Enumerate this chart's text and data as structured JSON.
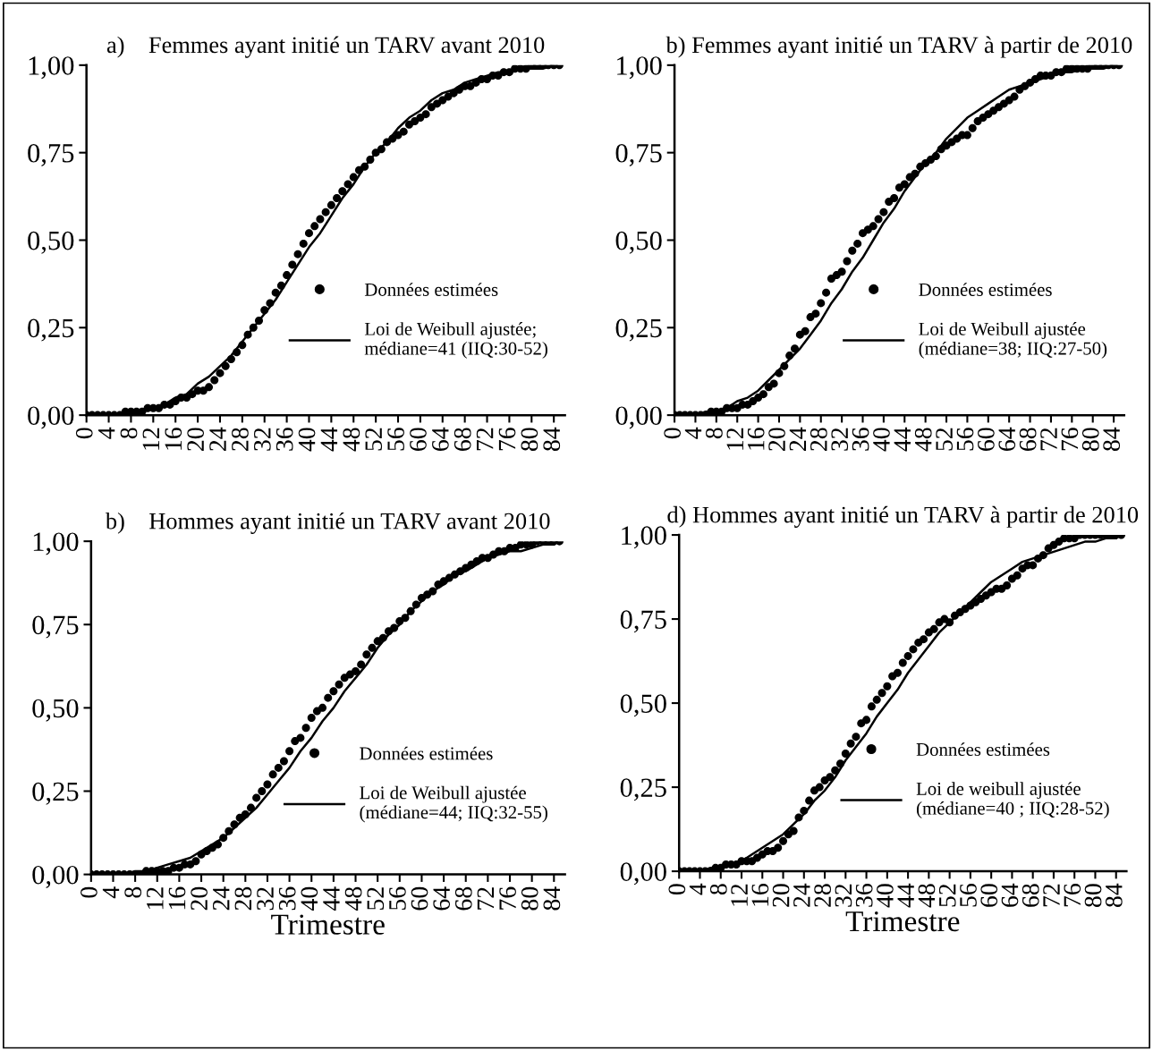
{
  "chart_data": [
    {
      "type": "scatter",
      "title": "a)    Femmes ayant initié un TARV avant 2010",
      "legend": "right",
      "grid": false,
      "x": [
        0,
        1,
        2,
        3,
        4,
        5,
        6,
        7,
        8,
        9,
        10,
        11,
        12,
        13,
        14,
        15,
        16,
        17,
        18,
        19,
        20,
        21,
        22,
        23,
        24,
        25,
        26,
        27,
        28,
        29,
        30,
        31,
        32,
        33,
        34,
        35,
        36,
        37,
        38,
        39,
        40,
        41,
        42,
        43,
        44,
        45,
        46,
        47,
        48,
        49,
        50,
        51,
        52,
        53,
        54,
        55,
        56,
        57,
        58,
        59,
        60,
        61,
        62,
        63,
        64,
        65,
        66,
        67,
        68,
        69,
        70,
        71,
        72,
        73,
        74,
        75,
        76,
        77,
        78,
        79,
        80,
        81,
        82,
        83,
        84,
        85
      ],
      "xlim": [
        0,
        86
      ],
      "xticks": [
        0,
        4,
        8,
        12,
        16,
        20,
        24,
        28,
        32,
        36,
        40,
        44,
        48,
        52,
        56,
        60,
        64,
        68,
        72,
        76,
        80,
        84
      ],
      "ylim": [
        0,
        1
      ],
      "yticks": [
        {
          "value": 0,
          "label": "0,00"
        },
        {
          "value": 0.25,
          "label": "0,25"
        },
        {
          "value": 0.5,
          "label": "0,50"
        },
        {
          "value": 0.75,
          "label": "0,75"
        },
        {
          "value": 1,
          "label": "1,00"
        }
      ],
      "series": [
        {
          "name": "Données estimées",
          "marker": "circle",
          "color": "#000000",
          "values": [
            0,
            0,
            0,
            0,
            0,
            0,
            0,
            0.01,
            0.01,
            0.01,
            0.01,
            0.02,
            0.02,
            0.02,
            0.03,
            0.03,
            0.04,
            0.05,
            0.05,
            0.06,
            0.07,
            0.07,
            0.08,
            0.1,
            0.12,
            0.14,
            0.16,
            0.18,
            0.2,
            0.23,
            0.25,
            0.27,
            0.3,
            0.32,
            0.35,
            0.37,
            0.4,
            0.43,
            0.46,
            0.49,
            0.52,
            0.54,
            0.56,
            0.58,
            0.6,
            0.62,
            0.64,
            0.66,
            0.68,
            0.7,
            0.71,
            0.73,
            0.75,
            0.76,
            0.78,
            0.79,
            0.8,
            0.81,
            0.83,
            0.84,
            0.85,
            0.86,
            0.88,
            0.89,
            0.9,
            0.91,
            0.92,
            0.93,
            0.94,
            0.94,
            0.95,
            0.96,
            0.96,
            0.97,
            0.97,
            0.98,
            0.98,
            0.99,
            0.99,
            0.99,
            1,
            1,
            1,
            1,
            1,
            1
          ]
        },
        {
          "name": "Loi de Weibull ajustée;\nmédiane=41 (IIQ:30-52)",
          "type": "line",
          "line_style": "solid",
          "color": "#000000",
          "x": [
            0,
            2,
            4,
            6,
            8,
            10,
            12,
            14,
            16,
            18,
            20,
            22,
            24,
            26,
            28,
            30,
            32,
            34,
            36,
            38,
            40,
            42,
            44,
            46,
            48,
            50,
            52,
            54,
            56,
            58,
            60,
            62,
            64,
            66,
            68,
            70,
            72,
            74,
            76,
            78,
            80,
            82,
            84
          ],
          "values": [
            0,
            0,
            0,
            0,
            0.01,
            0.01,
            0.02,
            0.03,
            0.05,
            0.06,
            0.09,
            0.11,
            0.14,
            0.17,
            0.21,
            0.25,
            0.29,
            0.33,
            0.38,
            0.43,
            0.48,
            0.52,
            0.57,
            0.62,
            0.66,
            0.71,
            0.75,
            0.78,
            0.82,
            0.85,
            0.87,
            0.9,
            0.92,
            0.93,
            0.95,
            0.96,
            0.97,
            0.98,
            0.98,
            0.99,
            0.99,
            0.99,
            1.0
          ]
        }
      ]
    },
    {
      "type": "scatter",
      "title": "b) Femmes ayant initié un TARV à partir de 2010",
      "legend": "right",
      "grid": false,
      "x": [
        0,
        1,
        2,
        3,
        4,
        5,
        6,
        7,
        8,
        9,
        10,
        11,
        12,
        13,
        14,
        15,
        16,
        17,
        18,
        19,
        20,
        21,
        22,
        23,
        24,
        25,
        26,
        27,
        28,
        29,
        30,
        31,
        32,
        33,
        34,
        35,
        36,
        37,
        38,
        39,
        40,
        41,
        42,
        43,
        44,
        45,
        46,
        47,
        48,
        49,
        50,
        51,
        52,
        53,
        54,
        55,
        56,
        57,
        58,
        59,
        60,
        61,
        62,
        63,
        64,
        65,
        66,
        67,
        68,
        69,
        70,
        71,
        72,
        73,
        74,
        75,
        76,
        77,
        78,
        79,
        80,
        81,
        82,
        83,
        84,
        85
      ],
      "xlim": [
        0,
        86
      ],
      "xticks": [
        0,
        4,
        8,
        12,
        16,
        20,
        24,
        28,
        32,
        36,
        40,
        44,
        48,
        52,
        56,
        60,
        64,
        68,
        72,
        76,
        80,
        84
      ],
      "ylim": [
        0,
        1
      ],
      "yticks": [
        {
          "value": 0,
          "label": "0,00"
        },
        {
          "value": 0.25,
          "label": "0,25"
        },
        {
          "value": 0.5,
          "label": "0,50"
        },
        {
          "value": 0.75,
          "label": "0,75"
        },
        {
          "value": 1,
          "label": "1,00"
        }
      ],
      "series": [
        {
          "name": "Données estimées",
          "marker": "circle",
          "color": "#000000",
          "values": [
            0,
            0,
            0,
            0,
            0,
            0,
            0,
            0.01,
            0.01,
            0.01,
            0.02,
            0.02,
            0.02,
            0.03,
            0.03,
            0.04,
            0.05,
            0.06,
            0.08,
            0.09,
            0.12,
            0.14,
            0.17,
            0.19,
            0.23,
            0.24,
            0.28,
            0.29,
            0.32,
            0.35,
            0.39,
            0.4,
            0.41,
            0.44,
            0.47,
            0.49,
            0.52,
            0.53,
            0.54,
            0.56,
            0.58,
            0.61,
            0.62,
            0.65,
            0.66,
            0.68,
            0.69,
            0.71,
            0.72,
            0.73,
            0.74,
            0.76,
            0.77,
            0.78,
            0.79,
            0.8,
            0.8,
            0.82,
            0.84,
            0.85,
            0.86,
            0.87,
            0.88,
            0.89,
            0.9,
            0.91,
            0.93,
            0.94,
            0.95,
            0.96,
            0.97,
            0.97,
            0.97,
            0.98,
            0.98,
            0.99,
            0.99,
            0.99,
            0.99,
            0.99,
            1,
            1,
            1,
            1,
            1,
            1
          ]
        },
        {
          "name": "Loi de Weibull ajustée\n(médiane=38; IIQ:27-50)",
          "type": "line",
          "line_style": "solid",
          "color": "#000000",
          "x": [
            0,
            2,
            4,
            6,
            8,
            10,
            12,
            14,
            16,
            18,
            20,
            22,
            24,
            26,
            28,
            30,
            32,
            34,
            36,
            38,
            40,
            42,
            44,
            46,
            48,
            50,
            52,
            54,
            56,
            58,
            60,
            62,
            64,
            66,
            68,
            70,
            72,
            74,
            76,
            78,
            80,
            82,
            84
          ],
          "values": [
            0,
            0,
            0,
            0.01,
            0.01,
            0.02,
            0.04,
            0.05,
            0.07,
            0.1,
            0.13,
            0.16,
            0.19,
            0.23,
            0.27,
            0.32,
            0.36,
            0.41,
            0.45,
            0.5,
            0.55,
            0.59,
            0.64,
            0.68,
            0.72,
            0.75,
            0.79,
            0.82,
            0.85,
            0.87,
            0.89,
            0.91,
            0.93,
            0.94,
            0.95,
            0.96,
            0.97,
            0.98,
            0.98,
            0.99,
            0.99,
            0.99,
            1.0
          ]
        }
      ]
    },
    {
      "type": "scatter",
      "title": "b)    Hommes ayant initié un TARV avant 2010",
      "xlabel": "Trimestre",
      "legend": "right",
      "grid": false,
      "x": [
        0,
        1,
        2,
        3,
        4,
        5,
        6,
        7,
        8,
        9,
        10,
        11,
        12,
        13,
        14,
        15,
        16,
        17,
        18,
        19,
        20,
        21,
        22,
        23,
        24,
        25,
        26,
        27,
        28,
        29,
        30,
        31,
        32,
        33,
        34,
        35,
        36,
        37,
        38,
        39,
        40,
        41,
        42,
        43,
        44,
        45,
        46,
        47,
        48,
        49,
        50,
        51,
        52,
        53,
        54,
        55,
        56,
        57,
        58,
        59,
        60,
        61,
        62,
        63,
        64,
        65,
        66,
        67,
        68,
        69,
        70,
        71,
        72,
        73,
        74,
        75,
        76,
        77,
        78,
        79,
        80,
        81,
        82,
        83,
        84,
        85
      ],
      "xlim": [
        0,
        86
      ],
      "xticks": [
        0,
        4,
        8,
        12,
        16,
        20,
        24,
        28,
        32,
        36,
        40,
        44,
        48,
        52,
        56,
        60,
        64,
        68,
        72,
        76,
        80,
        84
      ],
      "ylim": [
        0,
        1
      ],
      "yticks": [
        {
          "value": 0,
          "label": "0,00"
        },
        {
          "value": 0.25,
          "label": "0,25"
        },
        {
          "value": 0.5,
          "label": "0,50"
        },
        {
          "value": 0.75,
          "label": "0,75"
        },
        {
          "value": 1,
          "label": "1,00"
        }
      ],
      "series": [
        {
          "name": "Données estimées",
          "marker": "circle",
          "color": "#000000",
          "values": [
            0,
            0,
            0,
            0,
            0,
            0,
            0,
            0,
            0,
            0,
            0.01,
            0.01,
            0.01,
            0.01,
            0.01,
            0.02,
            0.02,
            0.03,
            0.03,
            0.04,
            0.06,
            0.07,
            0.08,
            0.09,
            0.11,
            0.13,
            0.15,
            0.17,
            0.18,
            0.2,
            0.23,
            0.25,
            0.27,
            0.3,
            0.32,
            0.34,
            0.37,
            0.4,
            0.41,
            0.44,
            0.47,
            0.49,
            0.5,
            0.53,
            0.55,
            0.57,
            0.59,
            0.6,
            0.61,
            0.63,
            0.66,
            0.68,
            0.7,
            0.71,
            0.73,
            0.74,
            0.76,
            0.77,
            0.79,
            0.81,
            0.83,
            0.84,
            0.85,
            0.87,
            0.88,
            0.89,
            0.9,
            0.91,
            0.92,
            0.93,
            0.94,
            0.95,
            0.95,
            0.96,
            0.97,
            0.97,
            0.98,
            0.98,
            0.99,
            0.99,
            0.99,
            1,
            1,
            1,
            1,
            1
          ]
        },
        {
          "name": "Loi de Weibull ajustée\n(médiane=44; IIQ:32-55)",
          "type": "line",
          "line_style": "solid",
          "color": "#000000",
          "x": [
            0,
            2,
            4,
            6,
            8,
            10,
            12,
            14,
            16,
            18,
            20,
            22,
            24,
            26,
            28,
            30,
            32,
            34,
            36,
            38,
            40,
            42,
            44,
            46,
            48,
            50,
            52,
            54,
            56,
            58,
            60,
            62,
            64,
            66,
            68,
            70,
            72,
            74,
            76,
            78,
            80,
            82,
            84
          ],
          "values": [
            0,
            0,
            0,
            0,
            0.01,
            0.01,
            0.02,
            0.03,
            0.04,
            0.05,
            0.07,
            0.09,
            0.11,
            0.14,
            0.17,
            0.2,
            0.24,
            0.28,
            0.32,
            0.37,
            0.41,
            0.46,
            0.5,
            0.55,
            0.59,
            0.63,
            0.68,
            0.72,
            0.75,
            0.79,
            0.82,
            0.85,
            0.87,
            0.9,
            0.91,
            0.93,
            0.95,
            0.96,
            0.97,
            0.97,
            0.98,
            0.99,
            0.99
          ]
        }
      ]
    },
    {
      "type": "scatter",
      "title": "d) Hommes ayant initié un TARV à partir de 2010",
      "xlabel": "Trimestre",
      "legend": "right",
      "grid": false,
      "x": [
        0,
        1,
        2,
        3,
        4,
        5,
        6,
        7,
        8,
        9,
        10,
        11,
        12,
        13,
        14,
        15,
        16,
        17,
        18,
        19,
        20,
        21,
        22,
        23,
        24,
        25,
        26,
        27,
        28,
        29,
        30,
        31,
        32,
        33,
        34,
        35,
        36,
        37,
        38,
        39,
        40,
        41,
        42,
        43,
        44,
        45,
        46,
        47,
        48,
        49,
        50,
        51,
        52,
        53,
        54,
        55,
        56,
        57,
        58,
        59,
        60,
        61,
        62,
        63,
        64,
        65,
        66,
        67,
        68,
        69,
        70,
        71,
        72,
        73,
        74,
        75,
        76,
        77,
        78,
        79,
        80,
        81,
        82,
        83,
        84,
        85
      ],
      "xlim": [
        0,
        86
      ],
      "xticks": [
        0,
        4,
        8,
        12,
        16,
        20,
        24,
        28,
        32,
        36,
        40,
        44,
        48,
        52,
        56,
        60,
        64,
        68,
        72,
        76,
        80,
        84
      ],
      "ylim": [
        0,
        1
      ],
      "yticks": [
        {
          "value": 0,
          "label": "0,00"
        },
        {
          "value": 0.25,
          "label": "0,25"
        },
        {
          "value": 0.5,
          "label": "0,50"
        },
        {
          "value": 0.75,
          "label": "0,75"
        },
        {
          "value": 1,
          "label": "1,00"
        }
      ],
      "series": [
        {
          "name": "Données estimées",
          "marker": "circle",
          "color": "#000000",
          "values": [
            0,
            0,
            0,
            0,
            0,
            0,
            0,
            0.01,
            0.01,
            0.02,
            0.02,
            0.02,
            0.03,
            0.03,
            0.03,
            0.04,
            0.05,
            0.06,
            0.06,
            0.07,
            0.09,
            0.11,
            0.12,
            0.16,
            0.18,
            0.21,
            0.24,
            0.25,
            0.27,
            0.28,
            0.3,
            0.32,
            0.35,
            0.38,
            0.4,
            0.44,
            0.45,
            0.49,
            0.51,
            0.53,
            0.55,
            0.58,
            0.59,
            0.62,
            0.64,
            0.66,
            0.68,
            0.69,
            0.71,
            0.72,
            0.74,
            0.75,
            0.74,
            0.76,
            0.77,
            0.78,
            0.79,
            0.8,
            0.81,
            0.82,
            0.83,
            0.84,
            0.84,
            0.85,
            0.87,
            0.88,
            0.9,
            0.91,
            0.91,
            0.93,
            0.94,
            0.96,
            0.97,
            0.98,
            0.99,
            0.99,
            0.99,
            1,
            1,
            1,
            1,
            1,
            1,
            1,
            1,
            1
          ]
        },
        {
          "name": "Loi de weibull ajustée\n(médiane=40 ; IIQ:28-52)",
          "type": "line",
          "line_style": "solid",
          "color": "#000000",
          "x": [
            0,
            2,
            4,
            6,
            8,
            10,
            12,
            14,
            16,
            18,
            20,
            22,
            24,
            26,
            28,
            30,
            32,
            34,
            36,
            38,
            40,
            42,
            44,
            46,
            48,
            50,
            52,
            54,
            56,
            58,
            60,
            62,
            64,
            66,
            68,
            70,
            72,
            74,
            76,
            78,
            80,
            82,
            84
          ],
          "values": [
            0,
            0,
            0,
            0.01,
            0.01,
            0.02,
            0.03,
            0.05,
            0.07,
            0.09,
            0.11,
            0.14,
            0.17,
            0.21,
            0.24,
            0.28,
            0.33,
            0.37,
            0.41,
            0.46,
            0.5,
            0.54,
            0.59,
            0.63,
            0.67,
            0.71,
            0.74,
            0.77,
            0.8,
            0.83,
            0.86,
            0.88,
            0.9,
            0.92,
            0.93,
            0.94,
            0.95,
            0.96,
            0.97,
            0.98,
            0.98,
            0.99,
            0.99
          ]
        }
      ]
    }
  ]
}
